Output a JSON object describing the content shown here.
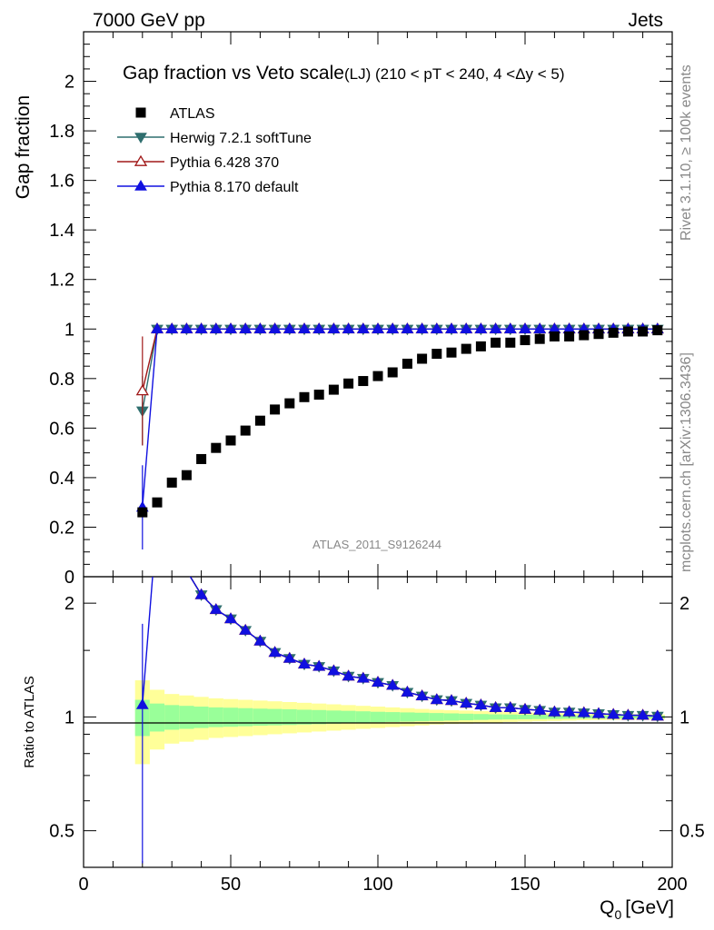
{
  "header": {
    "left": "7000 GeV pp",
    "right": "Jets"
  },
  "side": {
    "rivet": "Rivet 3.1.10, ≥ 100k events",
    "mcplots": "mcplots.cern.ch [arXiv:1306.3436]"
  },
  "chart_data": {
    "type": "scatter",
    "title": "Gap fraction vs Veto scale",
    "subtitle": "(LJ) (210 < pT < 240, 4 <Δy < 5)",
    "analysis_label": "ATLAS_2011_S9126244",
    "xlabel": "Q",
    "xlabel_sub": "0",
    "xlabel_unit": "[GeV]",
    "ylabel": "Gap fraction",
    "ratio_ylabel": "Ratio to ATLAS",
    "xlim": [
      0,
      200
    ],
    "ylim": [
      0,
      2.2
    ],
    "ratio_ylim": [
      0.4,
      2.35
    ],
    "ratio_log": true,
    "x_ticks": [
      "0",
      "50",
      "100",
      "150",
      "200"
    ],
    "y_ticks": [
      "0",
      "0.2",
      "0.4",
      "0.6",
      "0.8",
      "1",
      "1.2",
      "1.4",
      "1.6",
      "1.8",
      "2"
    ],
    "ratio_ticks": [
      "0.5",
      "1",
      "2"
    ],
    "legend_position": "top-left",
    "x": [
      20,
      25,
      30,
      35,
      40,
      45,
      50,
      55,
      60,
      65,
      70,
      75,
      80,
      85,
      90,
      95,
      100,
      105,
      110,
      115,
      120,
      125,
      130,
      135,
      140,
      145,
      150,
      155,
      160,
      165,
      170,
      175,
      180,
      185,
      190,
      195
    ],
    "data": {
      "name": "ATLAS",
      "color": "#000000",
      "values": [
        0.26,
        0.3,
        0.38,
        0.41,
        0.475,
        0.52,
        0.55,
        0.59,
        0.63,
        0.675,
        0.7,
        0.725,
        0.735,
        0.755,
        0.78,
        0.79,
        0.81,
        0.825,
        0.86,
        0.88,
        0.9,
        0.905,
        0.92,
        0.93,
        0.945,
        0.945,
        0.955,
        0.96,
        0.97,
        0.97,
        0.975,
        0.98,
        0.985,
        0.99,
        0.99,
        0.995
      ],
      "band_inner": [
        0.11,
        0.085,
        0.075,
        0.07,
        0.065,
        0.06,
        0.058,
        0.055,
        0.052,
        0.05,
        0.048,
        0.045,
        0.043,
        0.04,
        0.038,
        0.035,
        0.032,
        0.03,
        0.028,
        0.026,
        0.024,
        0.022,
        0.02,
        0.018,
        0.016,
        0.015,
        0.014,
        0.013,
        0.012,
        0.011,
        0.01,
        0.01,
        0.009,
        0.009,
        0.008,
        0.008
      ],
      "band_outer": [
        0.25,
        0.18,
        0.15,
        0.14,
        0.13,
        0.12,
        0.115,
        0.11,
        0.105,
        0.1,
        0.095,
        0.09,
        0.085,
        0.08,
        0.075,
        0.07,
        0.065,
        0.06,
        0.055,
        0.05,
        0.045,
        0.042,
        0.04,
        0.036,
        0.033,
        0.03,
        0.028,
        0.026,
        0.024,
        0.022,
        0.02,
        0.019,
        0.018,
        0.017,
        0.016,
        0.015
      ]
    },
    "series": [
      {
        "name": "Herwig 7.2.1 softTune",
        "color": "#2f6f6f",
        "marker": "triangle-down-filled",
        "values": [
          0.67,
          1,
          1,
          1,
          1,
          1,
          1,
          1,
          1,
          1,
          1,
          1,
          1,
          1,
          1,
          1,
          1,
          1,
          1,
          1,
          1,
          1,
          1,
          1,
          1,
          1,
          1,
          1,
          1,
          1,
          1,
          1,
          1,
          1,
          1,
          1
        ],
        "err0": 0.14
      },
      {
        "name": "Pythia 6.428 370",
        "color": "#a01818",
        "marker": "triangle-up-open",
        "values": [
          0.75,
          1,
          1,
          1,
          1,
          1,
          1,
          1,
          1,
          1,
          1,
          1,
          1,
          1,
          1,
          1,
          1,
          1,
          1,
          1,
          1,
          1,
          1,
          1,
          1,
          1,
          1,
          1,
          1,
          1,
          1,
          1,
          1,
          1,
          1,
          1
        ],
        "err0": 0.22
      },
      {
        "name": "Pythia 8.170 default",
        "color": "#1010e0",
        "marker": "triangle-up-filled",
        "values": [
          0.28,
          1,
          1,
          1,
          1,
          1,
          1,
          1,
          1,
          1,
          1,
          1,
          1,
          1,
          1,
          1,
          1,
          1,
          1,
          1,
          1,
          1,
          1,
          1,
          1,
          1,
          1,
          1,
          1,
          1,
          1,
          1,
          1,
          1,
          1,
          1
        ],
        "err0": 0.17
      }
    ]
  }
}
